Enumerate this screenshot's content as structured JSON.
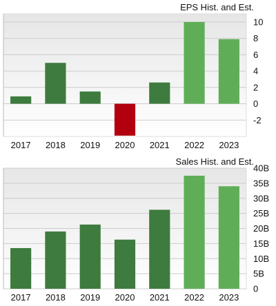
{
  "colors": {
    "bar_dark": "#3e7b3e",
    "bar_light": "#5fae57",
    "bar_negative": "#b3000e",
    "plot_bg_top": "#e6e6e6",
    "plot_bg_bottom": "#ffffff",
    "grid": "#cccccc",
    "axis_text": "#111111"
  },
  "chart_data": [
    {
      "type": "bar",
      "title": "EPS Hist. and Est.",
      "categories": [
        "2017",
        "2018",
        "2019",
        "2020",
        "2021",
        "2022",
        "2023"
      ],
      "values": [
        0.9,
        5.0,
        1.5,
        -3.9,
        2.6,
        10.0,
        7.9
      ],
      "estimate": [
        false,
        false,
        false,
        false,
        false,
        true,
        true
      ],
      "ylim": [
        -4,
        11
      ],
      "yticks": [
        -2,
        0,
        2,
        4,
        6,
        8,
        10
      ],
      "ytick_labels": [
        "-2",
        "0",
        "2",
        "4",
        "6",
        "8",
        "10"
      ],
      "grid": true,
      "xlabel": "",
      "ylabel": ""
    },
    {
      "type": "bar",
      "title": "Sales Hist. and Est.",
      "categories": [
        "2017",
        "2018",
        "2019",
        "2020",
        "2021",
        "2022",
        "2023"
      ],
      "values": [
        13.5,
        19.0,
        21.3,
        16.3,
        26.2,
        37.5,
        34.0
      ],
      "estimate": [
        false,
        false,
        false,
        false,
        false,
        true,
        true
      ],
      "ylim": [
        0,
        40
      ],
      "yticks": [
        0,
        5,
        10,
        15,
        20,
        25,
        30,
        35,
        40
      ],
      "ytick_labels": [
        "0",
        "5B",
        "10B",
        "15B",
        "20B",
        "25B",
        "30B",
        "35B",
        "40B"
      ],
      "grid": true,
      "xlabel": "",
      "ylabel": ""
    }
  ]
}
